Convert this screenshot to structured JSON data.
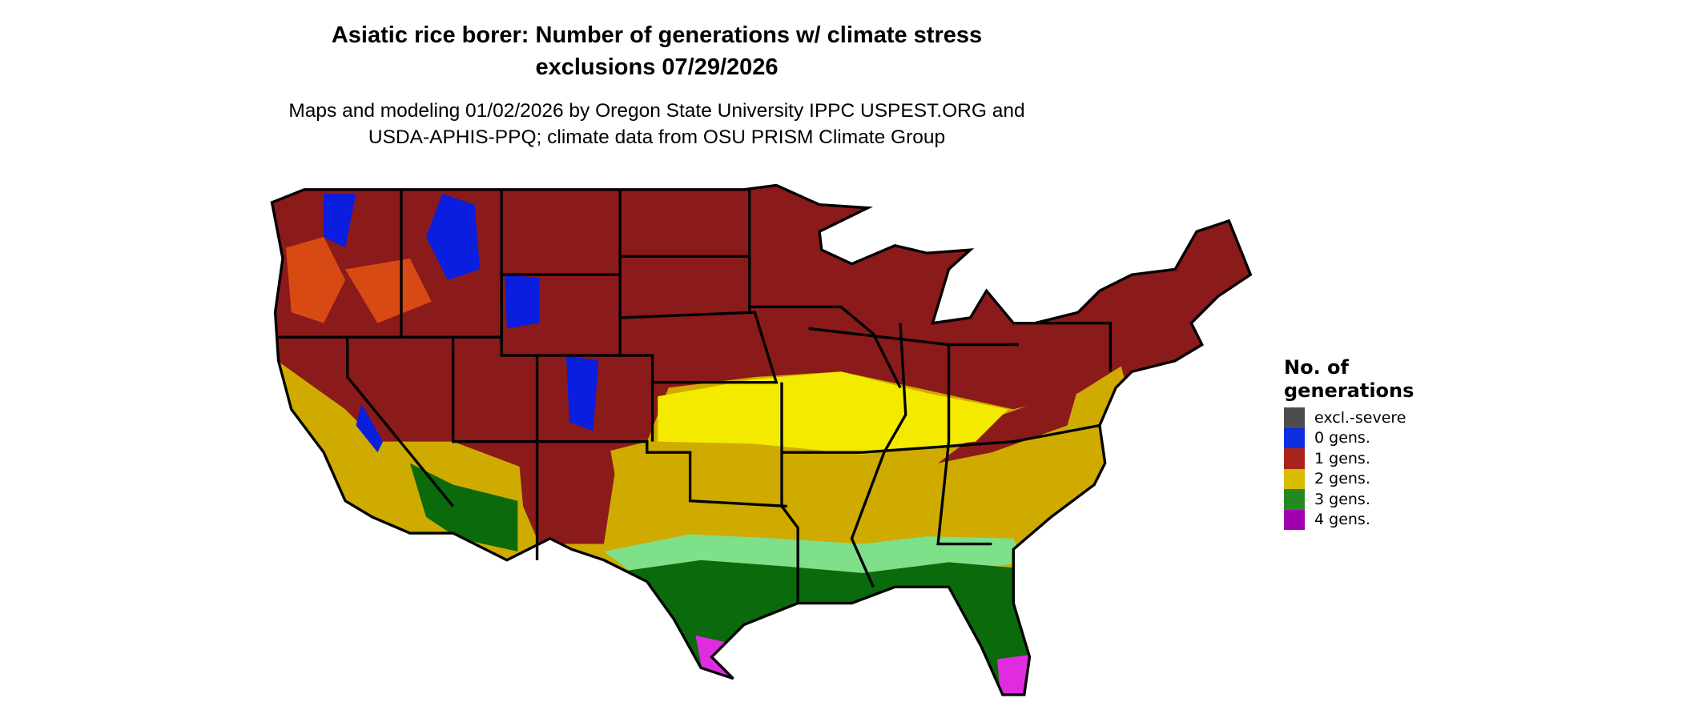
{
  "title_line1": "Asiatic rice borer: Number of generations w/ climate stress",
  "title_line2": "exclusions 07/29/2026",
  "subtitle_line1": "Maps and modeling 01/02/2026 by Oregon State University IPPC USPEST.ORG and",
  "subtitle_line2": "USDA-APHIS-PPQ; climate data from OSU PRISM Climate Group",
  "legend": {
    "title_line1": "No. of",
    "title_line2": "generations",
    "items": [
      {
        "label": "excl.-severe",
        "color": "#4d4d4d"
      },
      {
        "label": "0 gens.",
        "color": "#0a2ee0"
      },
      {
        "label": "1 gens.",
        "color": "#a8241a"
      },
      {
        "label": "2 gens.",
        "color": "#d9bc00"
      },
      {
        "label": "3 gens.",
        "color": "#238a23"
      },
      {
        "label": "4 gens.",
        "color": "#a000b0"
      }
    ]
  },
  "map_colors": {
    "one_gen_dark": "#8b1a1a",
    "one_gen_light": "#d84a14",
    "two_gen": "#cfab00",
    "two_gen_light": "#f3ea00",
    "three_gen_dark": "#0b6a0b",
    "three_gen_light": "#7fe08a",
    "four_gen": "#e02ce0",
    "zero_gen": "#0a1ee0"
  }
}
